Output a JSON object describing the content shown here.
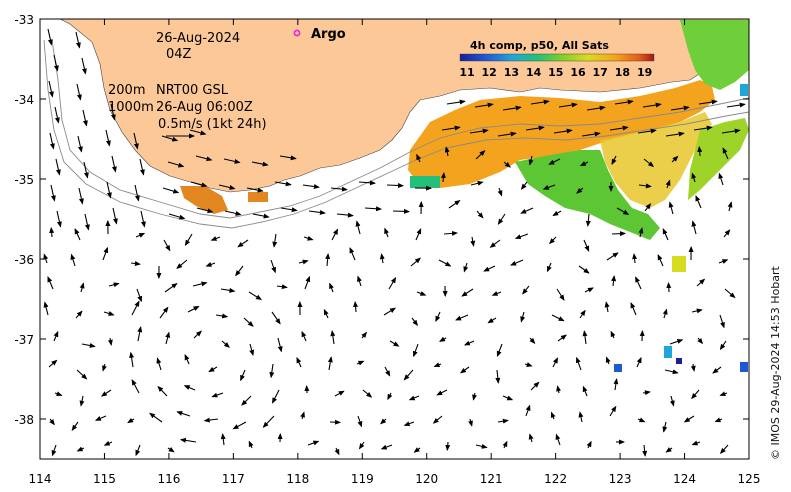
{
  "map": {
    "date_label": "26-Aug-2024",
    "time_label": "04Z",
    "argo_label": "Argo",
    "isobath_label_1": "200m",
    "isobath_label_2": "1000m",
    "model_label": "NRT00 GSL",
    "model_time": "26-Aug 06:00Z",
    "scale_label": "0.5m/s (1kt 24h)",
    "legend_title": "4h comp, p50, All Sats",
    "legend_ticks": [
      "11",
      "12",
      "13",
      "14",
      "15",
      "16",
      "17",
      "18",
      "19"
    ],
    "x_ticks": [
      "114",
      "115",
      "116",
      "117",
      "118",
      "119",
      "120",
      "121",
      "122",
      "123",
      "124",
      "125"
    ],
    "y_ticks": [
      "-33",
      "-34",
      "-35",
      "-36",
      "-37",
      "-38"
    ],
    "credit": "© IMOS 29-Aug-2024 14:53 Hobart",
    "colors": {
      "land": "#fcc898",
      "sst_warm": "#f4a31e",
      "sst_mid": "#e7c529",
      "sst_cool": "#5cc634",
      "argo": "#e020e0"
    }
  }
}
